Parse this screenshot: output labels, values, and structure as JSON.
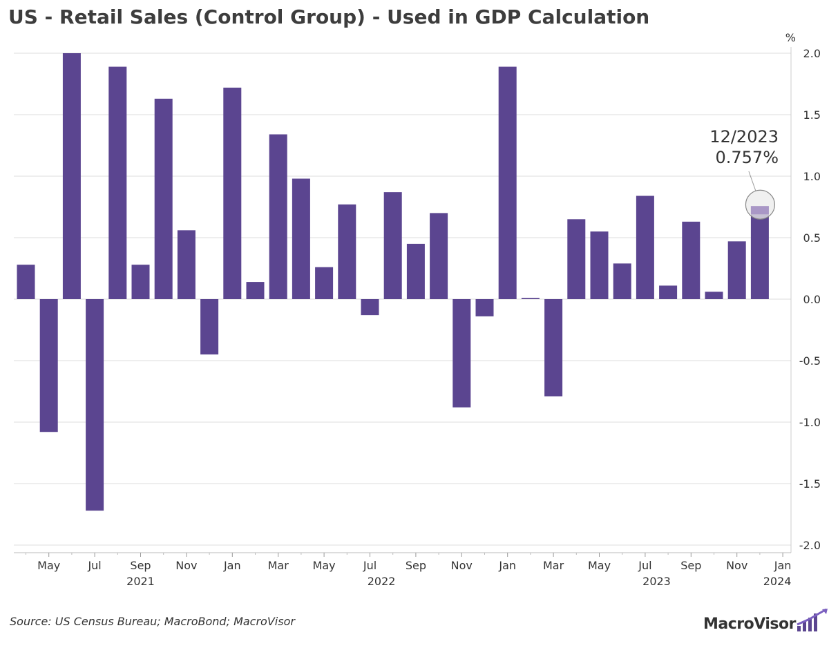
{
  "title": "US - Retail Sales (Control Group) - Used in GDP Calculation",
  "source": "Source: US Census Bureau; MacroBond; MacroVisor",
  "logo_text": "MacroVisor",
  "colors": {
    "bar": "#5b4590",
    "grid": "#dddddd",
    "highlight_bar": "#a997c6"
  },
  "chart_data": {
    "type": "bar",
    "unit": "%",
    "ylim": [
      -2.0,
      2.0
    ],
    "yticks": [
      "2.0",
      "1.5",
      "1.0",
      "0.5",
      "0.0",
      "-0.5",
      "-1.0",
      "-1.5",
      "-2.0"
    ],
    "categories": [
      "2021-04",
      "2021-05",
      "2021-06",
      "2021-07",
      "2021-08",
      "2021-09",
      "2021-10",
      "2021-11",
      "2021-12",
      "2022-01",
      "2022-02",
      "2022-03",
      "2022-04",
      "2022-05",
      "2022-06",
      "2022-07",
      "2022-08",
      "2022-09",
      "2022-10",
      "2022-11",
      "2022-12",
      "2023-01",
      "2023-02",
      "2023-03",
      "2023-04",
      "2023-05",
      "2023-06",
      "2023-07",
      "2023-08",
      "2023-09",
      "2023-10",
      "2023-11",
      "2023-12"
    ],
    "values": [
      0.28,
      -1.08,
      2.0,
      -1.72,
      1.89,
      0.28,
      1.63,
      0.56,
      -0.45,
      1.72,
      0.14,
      1.34,
      0.98,
      0.26,
      0.77,
      -0.13,
      0.87,
      0.45,
      0.7,
      -0.88,
      -0.14,
      1.89,
      0.01,
      -0.79,
      0.65,
      0.55,
      0.29,
      0.84,
      0.11,
      0.63,
      0.06,
      0.47,
      0.757
    ],
    "xtick_months": [
      "May",
      "Jul",
      "Sep",
      "Nov",
      "Jan",
      "Mar",
      "May",
      "Jul",
      "Sep",
      "Nov",
      "Jan",
      "Mar",
      "May",
      "Jul",
      "Sep",
      "Nov",
      "Jan"
    ],
    "years": [
      "2021",
      "2022",
      "2023",
      "2024"
    ],
    "annotation": {
      "period": "12/2023",
      "value": "0.757%"
    },
    "grid": true
  }
}
